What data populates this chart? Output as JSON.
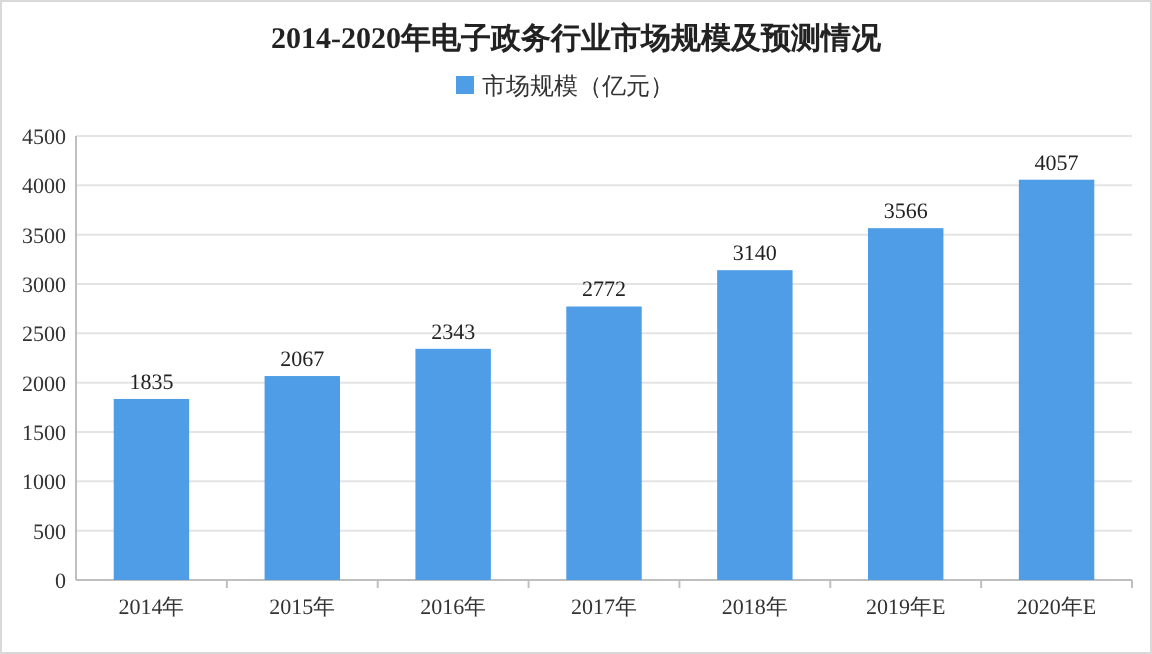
{
  "chart_data": {
    "type": "bar",
    "title": "2014-2020年电子政务行业市场规模及预测情况",
    "categories": [
      "2014年",
      "2015年",
      "2016年",
      "2017年",
      "2018年",
      "2019年E",
      "2020年E"
    ],
    "series": [
      {
        "name": "市场规模（亿元）",
        "color": "#4e9de6",
        "values": [
          1835,
          2067,
          2343,
          2772,
          3140,
          3566,
          4057
        ]
      }
    ],
    "ylim": [
      0,
      4500
    ],
    "yticks": [
      0,
      500,
      1000,
      1500,
      2000,
      2500,
      3000,
      3500,
      4000,
      4500
    ],
    "grid": "y",
    "legend": "top",
    "data_labels": true
  }
}
